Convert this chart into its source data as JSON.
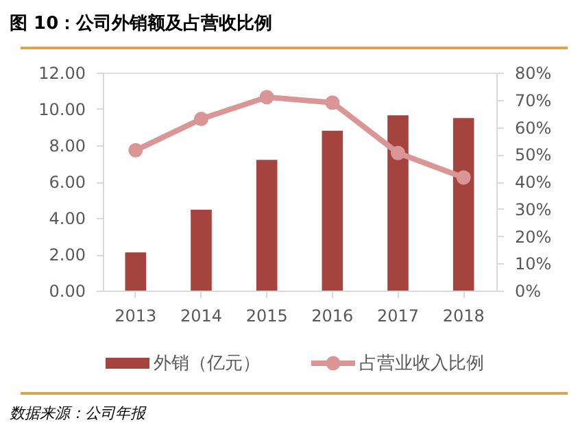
{
  "chart_data": {
    "type": "bar",
    "title": "图 10：公司外销额及占营收比例",
    "categories": [
      "2013",
      "2014",
      "2015",
      "2016",
      "2017",
      "2018"
    ],
    "series": [
      {
        "name": "外销（亿元）",
        "color": "#a5443f",
        "values": [
          2.1,
          4.45,
          7.2,
          8.8,
          9.65,
          9.5
        ]
      },
      {
        "name": "占营业收入比例",
        "type": "line",
        "axis": "y2",
        "color": "#d99694",
        "marker": "circle",
        "line_style": "solid",
        "values": [
          51.5,
          63,
          71,
          69,
          50.5,
          41.5
        ]
      }
    ],
    "ylim": [
      0,
      12
    ],
    "yticks": [
      {
        "value": 0,
        "label": "0.00"
      },
      {
        "value": 2,
        "label": "2.00"
      },
      {
        "value": 4,
        "label": "4.00"
      },
      {
        "value": 6,
        "label": "6.00"
      },
      {
        "value": 8,
        "label": "8.00"
      },
      {
        "value": 10,
        "label": "10.00"
      },
      {
        "value": 12,
        "label": "12.00"
      }
    ],
    "y2lim": [
      0,
      80
    ],
    "y2ticks": [
      {
        "value": 0,
        "label": "0%"
      },
      {
        "value": 10,
        "label": "10%"
      },
      {
        "value": 20,
        "label": "20%"
      },
      {
        "value": 30,
        "label": "30%"
      },
      {
        "value": 40,
        "label": "40%"
      },
      {
        "value": 50,
        "label": "50%"
      },
      {
        "value": 60,
        "label": "60%"
      },
      {
        "value": 70,
        "label": "70%"
      },
      {
        "value": 80,
        "label": "80%"
      }
    ],
    "grid": false,
    "legend": "bottom",
    "annotations": [
      "数据来源：公司年报"
    ]
  }
}
